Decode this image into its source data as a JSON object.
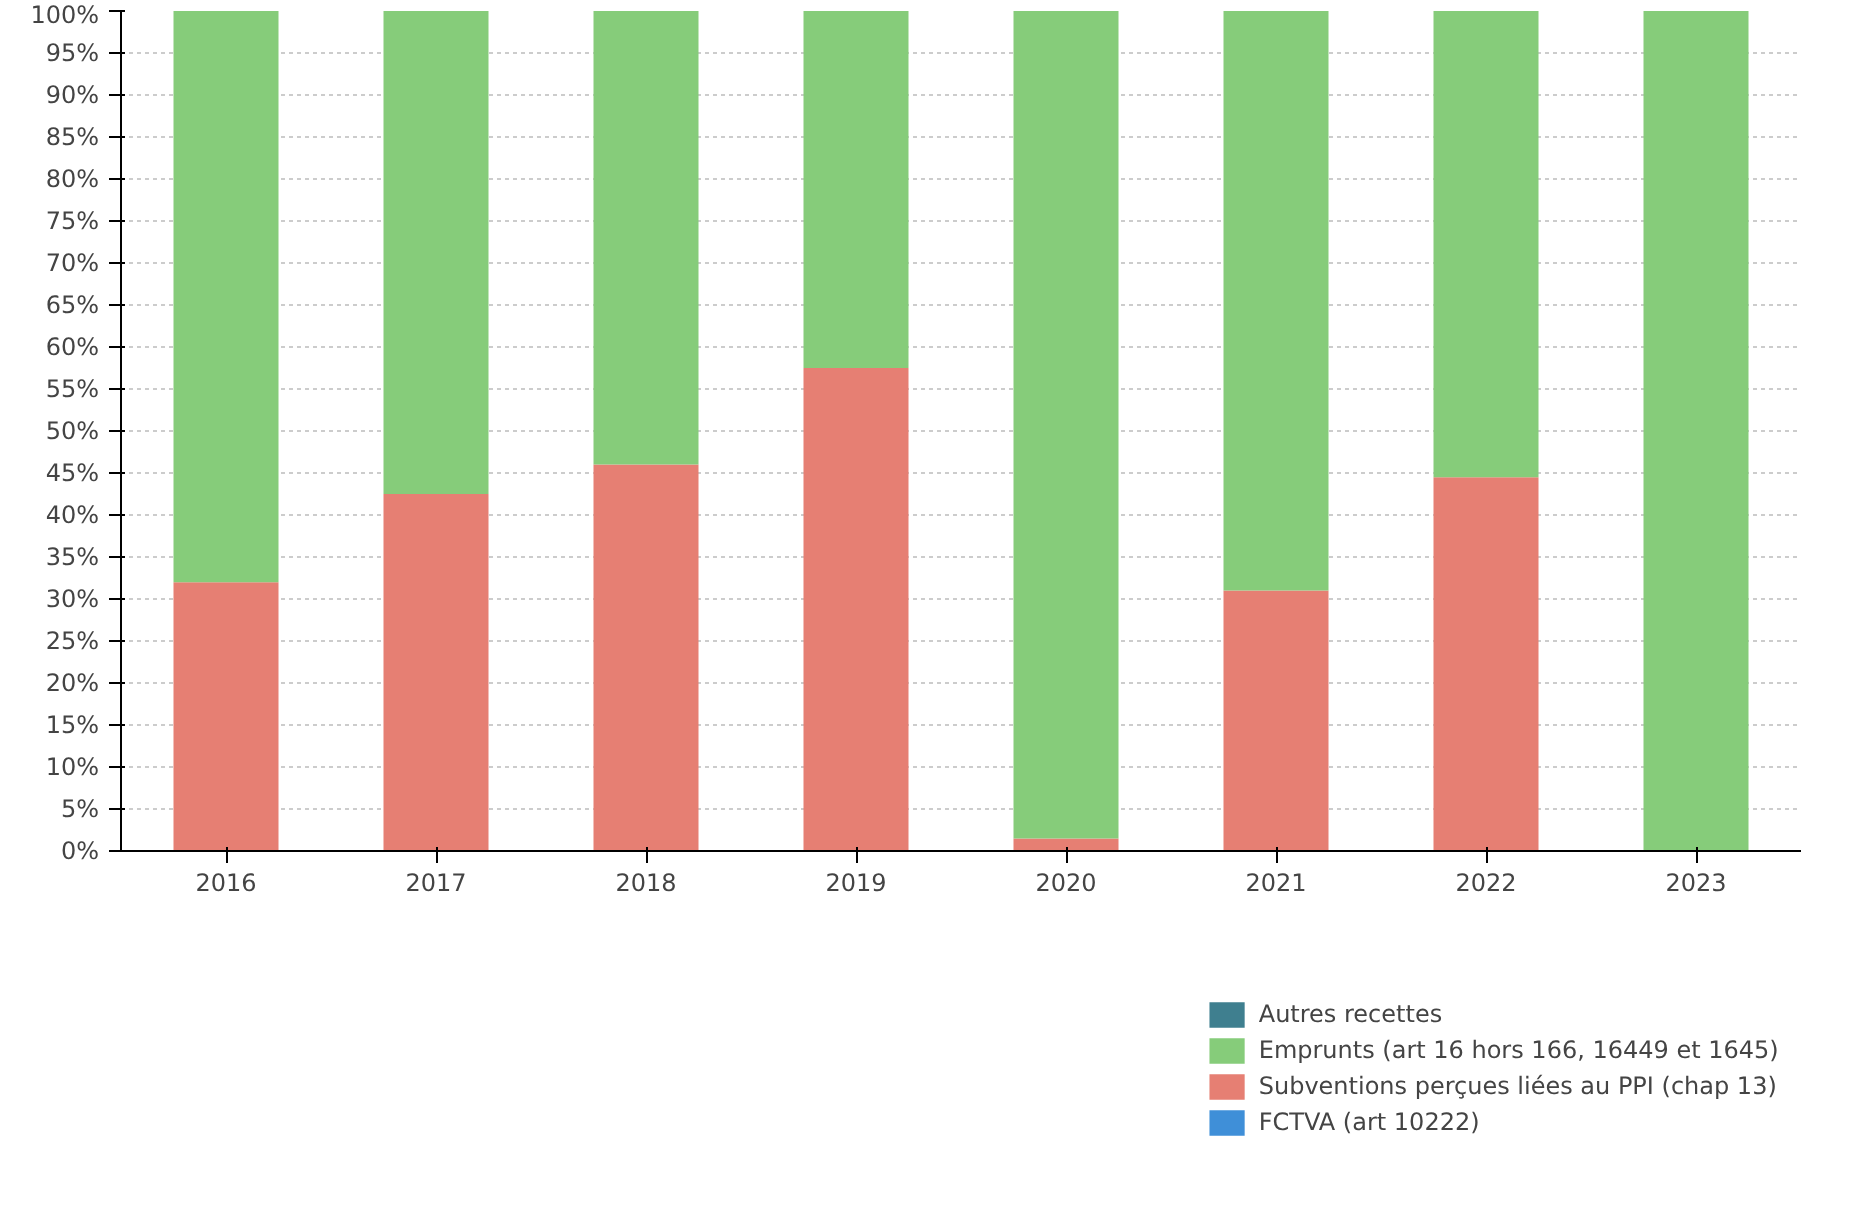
{
  "chart_data": {
    "type": "bar",
    "stacked": true,
    "categories": [
      "2016",
      "2017",
      "2018",
      "2019",
      "2020",
      "2021",
      "2022",
      "2023"
    ],
    "series": [
      {
        "name": "FCTVA (art 10222)",
        "color": "#3f8fd8",
        "values": [
          0,
          0,
          0,
          0,
          0,
          0,
          0,
          0
        ]
      },
      {
        "name": "Subventions perçues liées au PPI (chap 13)",
        "color": "#e67f73",
        "values": [
          32,
          42.5,
          46,
          57.5,
          1.5,
          31,
          44.5,
          0
        ]
      },
      {
        "name": "Emprunts (art 16 hors 166, 16449 et 1645)",
        "color": "#86cc7a",
        "values": [
          68,
          57.5,
          54,
          42.5,
          98.5,
          69,
          55.5,
          100
        ]
      },
      {
        "name": "Autres recettes",
        "color": "#3f7f8f",
        "values": [
          0,
          0,
          0,
          0,
          0,
          0,
          0,
          0
        ]
      }
    ],
    "ylim": [
      0,
      100
    ],
    "yticks": [
      {
        "value": 0,
        "label": "0%"
      },
      {
        "value": 5,
        "label": "5%"
      },
      {
        "value": 10,
        "label": "10%"
      },
      {
        "value": 15,
        "label": "15%"
      },
      {
        "value": 20,
        "label": "20%"
      },
      {
        "value": 25,
        "label": "25%"
      },
      {
        "value": 30,
        "label": "30%"
      },
      {
        "value": 35,
        "label": "35%"
      },
      {
        "value": 40,
        "label": "40%"
      },
      {
        "value": 45,
        "label": "45%"
      },
      {
        "value": 50,
        "label": "50%"
      },
      {
        "value": 55,
        "label": "55%"
      },
      {
        "value": 60,
        "label": "60%"
      },
      {
        "value": 65,
        "label": "65%"
      },
      {
        "value": 70,
        "label": "70%"
      },
      {
        "value": 75,
        "label": "75%"
      },
      {
        "value": 80,
        "label": "80%"
      },
      {
        "value": 85,
        "label": "85%"
      },
      {
        "value": 90,
        "label": "90%"
      },
      {
        "value": 95,
        "label": "95%"
      },
      {
        "value": 100,
        "label": "100%"
      }
    ],
    "grid": "y",
    "legend": "bottom"
  }
}
